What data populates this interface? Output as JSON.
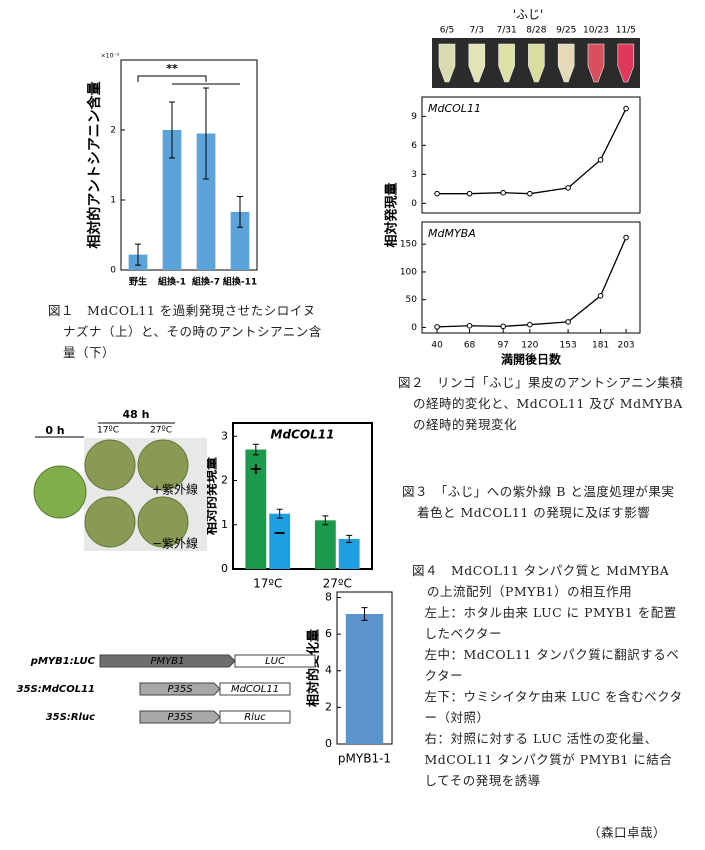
{
  "chart_data": [
    {
      "type": "bar",
      "ylabel": "相対的アントシアニン含量",
      "yunit": "×10⁻³",
      "categories": [
        "野生",
        "組換-1",
        "組換-7",
        "組換-11"
      ],
      "values": [
        0.22,
        2.0,
        1.95,
        0.83
      ],
      "errors": [
        0.15,
        0.4,
        0.65,
        0.22
      ],
      "color": "#5ba3d9",
      "ylim": [
        0,
        3
      ],
      "yticks": [
        0,
        1,
        2
      ],
      "annotation": "**"
    },
    {
      "type": "line",
      "title": "MdCOL11",
      "ylabel": "相対発現量",
      "x": [
        40,
        68,
        97,
        120,
        153,
        181,
        203
      ],
      "values": [
        1,
        1,
        1.1,
        1,
        1.6,
        4.5,
        9.8
      ],
      "color": "#000000",
      "xlim": [
        27,
        215
      ],
      "ylim": [
        -1,
        11
      ],
      "yticks": [
        0,
        3,
        6,
        9
      ]
    },
    {
      "type": "line",
      "title": "MdMYBA",
      "xlabel": "満開後日数",
      "x": [
        40,
        68,
        97,
        120,
        153,
        181,
        203
      ],
      "values": [
        1,
        3,
        2,
        5,
        10,
        57,
        162
      ],
      "color": "#000000",
      "xlim": [
        27,
        215
      ],
      "ylim": [
        -10,
        190
      ],
      "yticks": [
        0,
        50,
        100,
        150
      ],
      "xticks": [
        40,
        68,
        97,
        120,
        153,
        181,
        203
      ]
    },
    {
      "type": "bar",
      "title": "MdCOL11",
      "ylabel": "相対的発現量",
      "categories": [
        "17ºC",
        "27ºC"
      ],
      "series": [
        {
          "marker": "+",
          "color": "#1a9a4a",
          "values": [
            2.7,
            1.1
          ],
          "errors": [
            0.12,
            0.1
          ]
        },
        {
          "marker": "−",
          "color": "#1e9fe0",
          "values": [
            1.25,
            0.68
          ],
          "errors": [
            0.1,
            0.08
          ]
        }
      ],
      "ylim": [
        0,
        3.3
      ],
      "yticks": [
        0,
        1,
        2,
        3
      ]
    },
    {
      "type": "bar",
      "ylabel": "相対的変化量",
      "categories": [
        "pMYB1-1"
      ],
      "values": [
        7.1
      ],
      "errors": [
        0.35
      ],
      "color": "#5b93cc",
      "ylim": [
        0,
        8.3
      ],
      "yticks": [
        0,
        2,
        4,
        6,
        8
      ]
    }
  ],
  "figure2_photo": {
    "title": "'ふじ'",
    "dates": [
      "6/5",
      "7/3",
      "7/31",
      "8/28",
      "9/25",
      "10/23",
      "11/5"
    ]
  },
  "figure3_photo": {
    "time0": "0 h",
    "time48": "48 h",
    "temps": [
      "17ºC",
      "27ºC"
    ],
    "uv_plus": "+紫外線",
    "uv_minus": "−紫外線"
  },
  "figure4_constructs": [
    {
      "label": "pMYB1:LUC",
      "parts": [
        "PMYB1",
        "LUC"
      ]
    },
    {
      "label": "35S:MdCOL11",
      "parts": [
        "P35S",
        "MdCOL11"
      ]
    },
    {
      "label": "35S:Rluc",
      "parts": [
        "P35S",
        "Rluc"
      ]
    }
  ],
  "captions": {
    "figure1": "図１　MdCOL11 を過剰発現させたシロイヌナズナ（上）と、その時のアントシアニン含量（下）",
    "figure2": "図２　リンゴ「ふじ」果皮のアントシアニン集積の経時的変化と、MdCOL11 及び MdMYBA の経時的発現変化",
    "figure3": "図３　「ふじ」への紫外線 B と温度処理が果実着色と MdCOL11 の発現に及ぼす影響",
    "figure4": "図４　MdCOL11 タンパク質と MdMYBA の上流配列（PMYB1）の相互作用",
    "figure4_notes": [
      "左上：ホタル由来 LUC に PMYB1 を配置したベクター",
      "左中：MdCOL11 タンパク質に翻訳するベクター",
      "左下：ウミシイタケ由来 LUC を含むベクター（対照）",
      "右：対照に対する LUC 活性の変化量、MdCOL11 タンパク質が PMYB1 に結合してその発現を誘導"
    ]
  },
  "author": "（森口卓哉）"
}
